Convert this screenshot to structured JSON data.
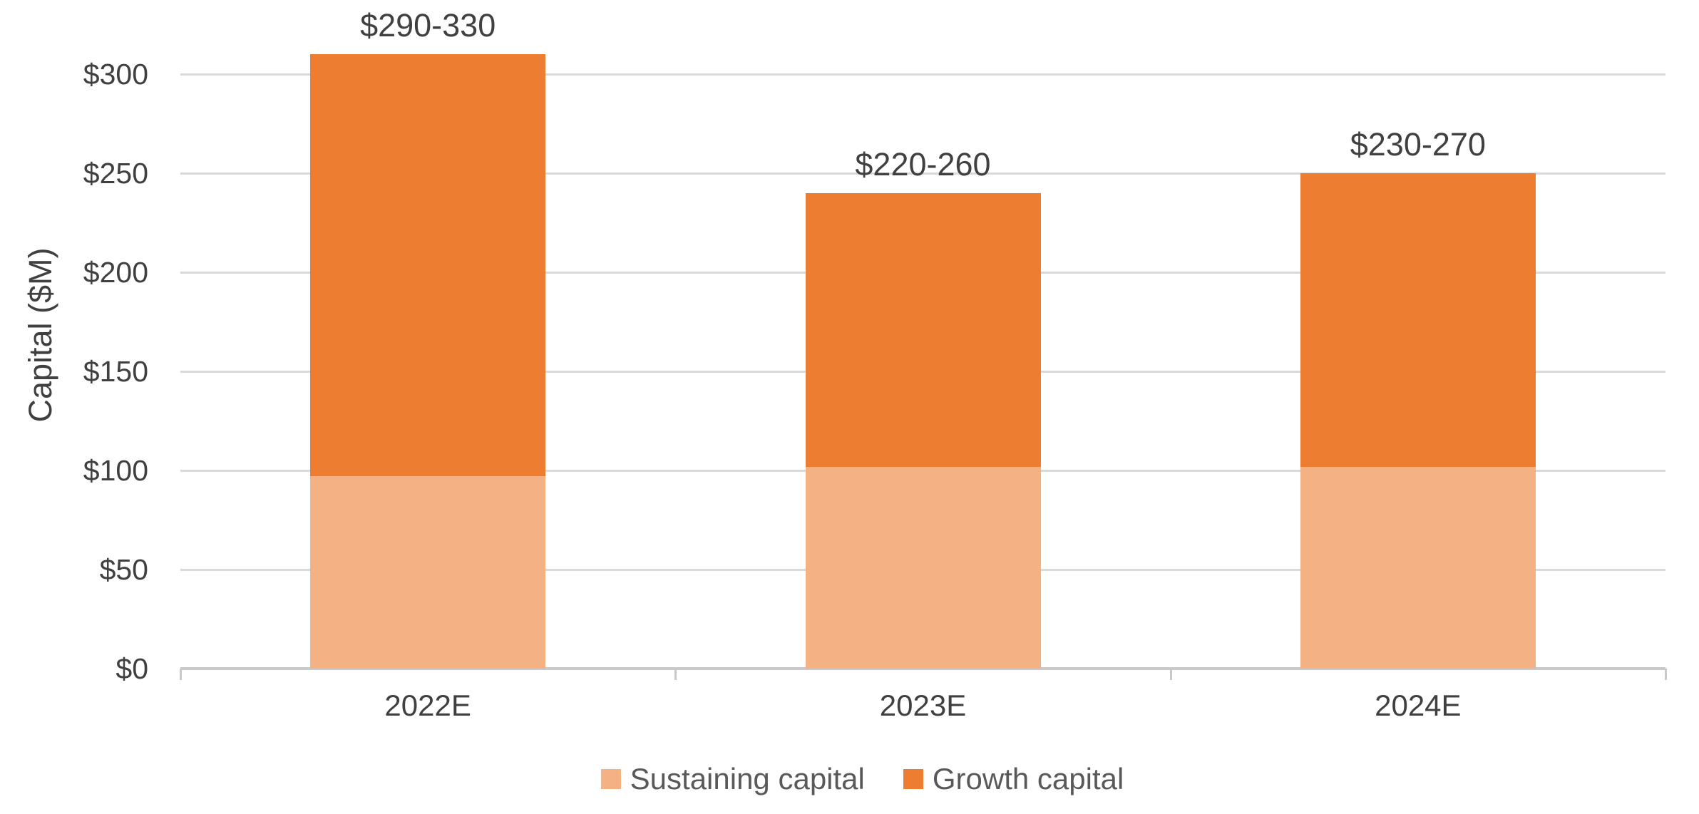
{
  "chart_data": {
    "type": "bar",
    "stacked": true,
    "title": "",
    "ylabel": "Capital ($M)",
    "xlabel": "",
    "categories": [
      "2022E",
      "2023E",
      "2024E"
    ],
    "series": [
      {
        "name": "Sustaining capital",
        "color": "#F4B183",
        "values": [
          97,
          102,
          102
        ]
      },
      {
        "name": "Growth capital",
        "color": "#ED7D31",
        "values": [
          213,
          138,
          148
        ]
      }
    ],
    "bar_total_values": [
      310,
      240,
      250
    ],
    "bar_labels": [
      "$290-330",
      "$220-260",
      "$230-270"
    ],
    "yticks": [
      0,
      50,
      100,
      150,
      200,
      250,
      300
    ],
    "ytick_labels": [
      "$0",
      "$50",
      "$100",
      "$150",
      "$200",
      "$250",
      "$300"
    ],
    "ylim": [
      0,
      337.5
    ],
    "grid": true,
    "legend_position": "bottom"
  },
  "colors": {
    "gridline": "#D9D9D9",
    "axis_line": "#C9C9C9",
    "axis_text": "#404040",
    "legend_text": "#595959",
    "background": "#FFFFFF"
  }
}
